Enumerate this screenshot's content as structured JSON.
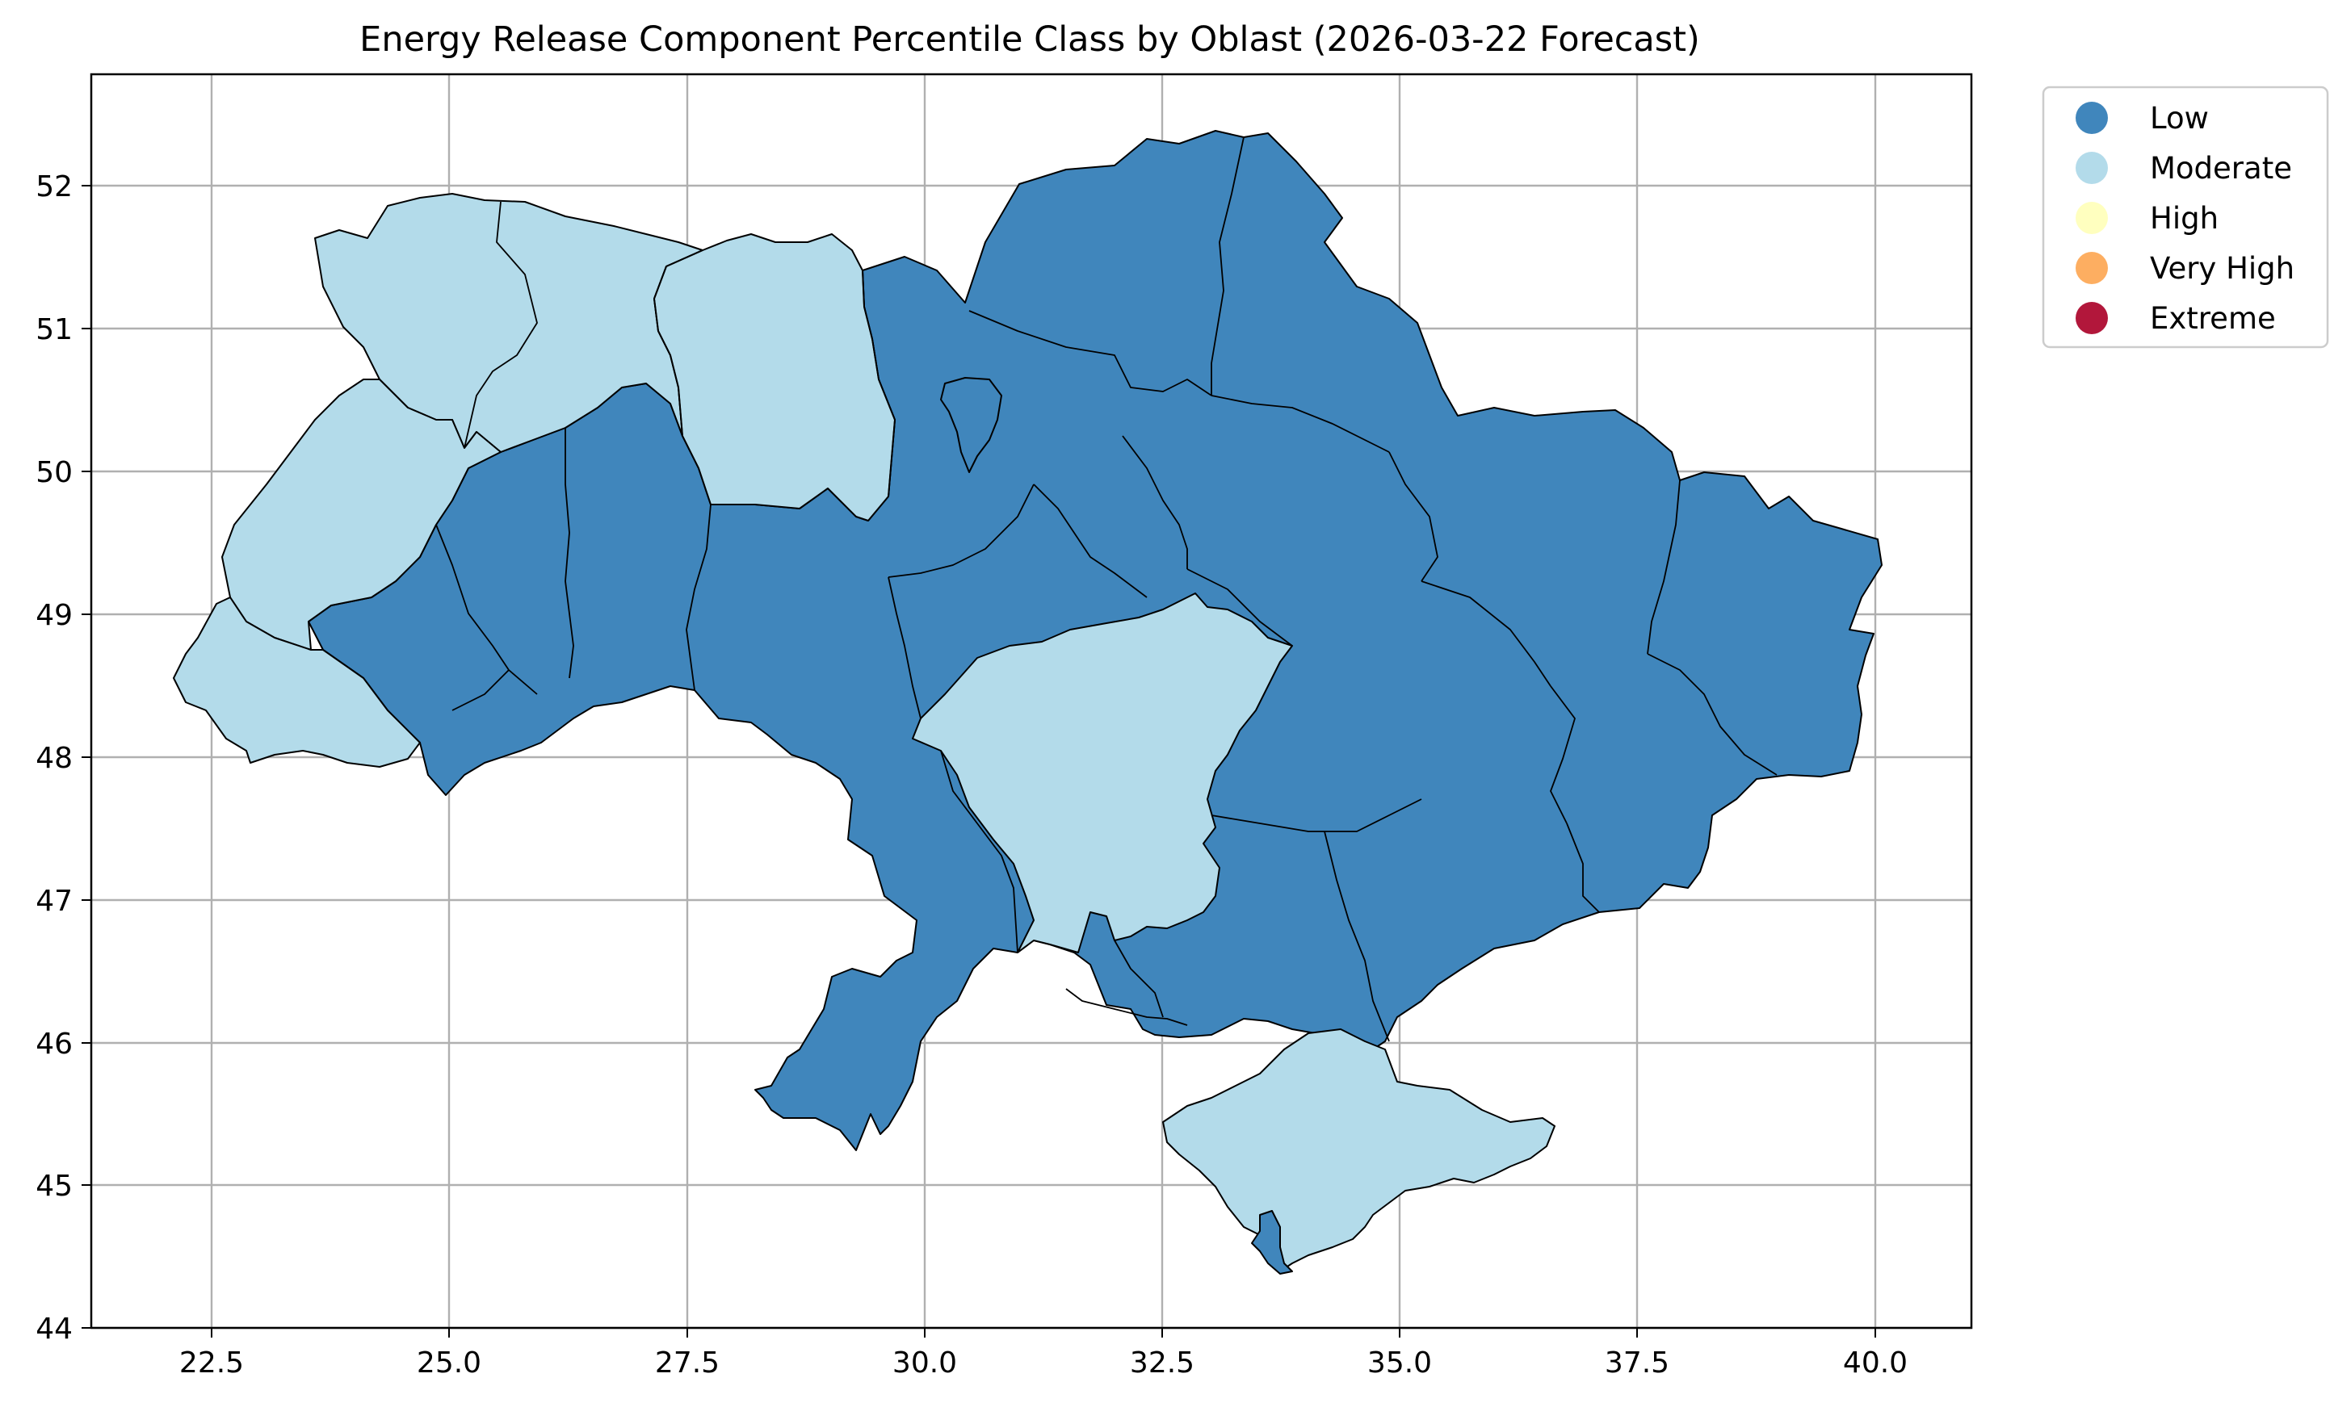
{
  "title": "Energy Release Component Percentile Class by Oblast (2026-03-22 Forecast)",
  "colors": {
    "Low": "#4086bc",
    "Moderate": "#b3dbea",
    "High": "#ffffbf",
    "Very High": "#fdae61",
    "Extreme": "#b2173b"
  },
  "legend": {
    "items": [
      {
        "label": "Low",
        "color": "#4086bc"
      },
      {
        "label": "Moderate",
        "color": "#b3dbea"
      },
      {
        "label": "High",
        "color": "#ffffbf"
      },
      {
        "label": "Very High",
        "color": "#fdae61"
      },
      {
        "label": "Extreme",
        "color": "#b2173b"
      }
    ]
  },
  "axes": {
    "x_ticks": [
      "22.5",
      "25.0",
      "27.5",
      "30.0",
      "32.5",
      "35.0",
      "37.5",
      "40.0"
    ],
    "y_ticks": [
      "52",
      "51",
      "50",
      "49",
      "48",
      "47",
      "46",
      "45",
      "44"
    ],
    "grid": true
  }
}
